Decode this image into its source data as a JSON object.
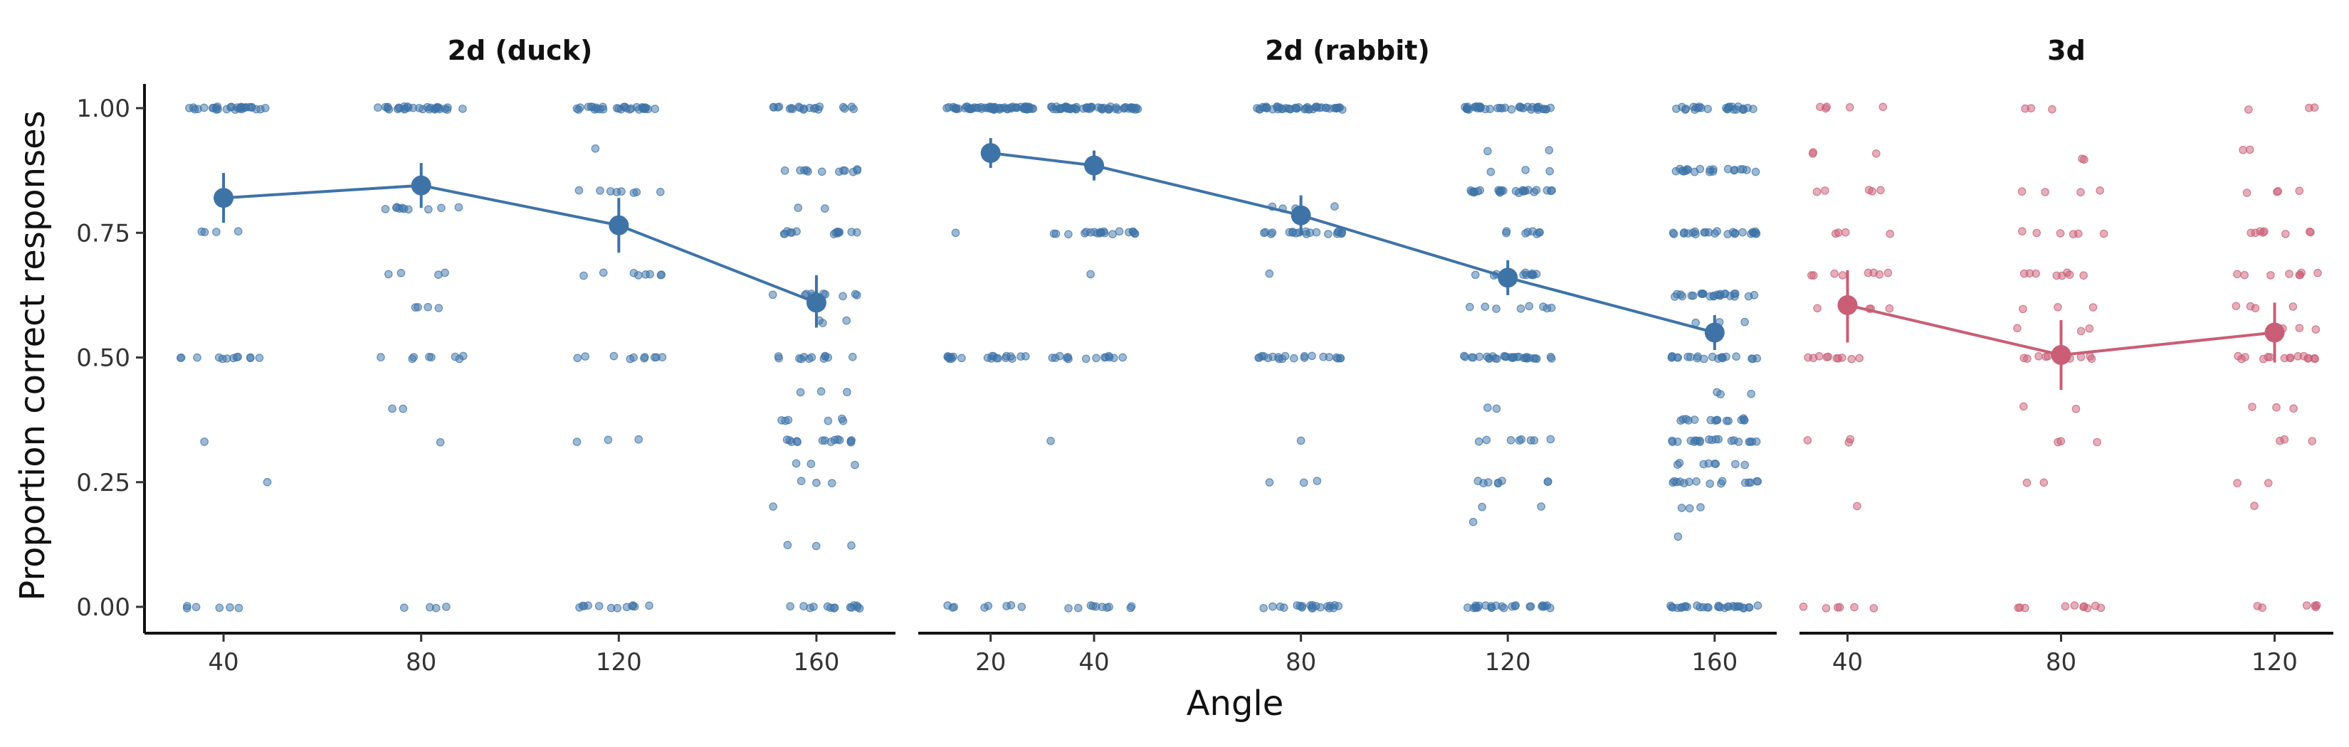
{
  "chart_data": {
    "type": "scatter",
    "xlabel": "Angle",
    "ylabel": "Proportion correct responses",
    "ylim": [
      0,
      1
    ],
    "y_ticks": [
      "0.00",
      "0.25",
      "0.50",
      "0.75",
      "1.00"
    ],
    "grid": false,
    "legend": "none",
    "panels": [
      {
        "title": "2d (duck)",
        "color": "#3e73a8",
        "x_ticks": [
          "40",
          "80",
          "120",
          "160"
        ],
        "xlim": [
          24,
          176
        ],
        "means": [
          {
            "x": 40,
            "y": 0.82,
            "lo": 0.77,
            "hi": 0.87
          },
          {
            "x": 80,
            "y": 0.845,
            "lo": 0.8,
            "hi": 0.89
          },
          {
            "x": 120,
            "y": 0.765,
            "lo": 0.71,
            "hi": 0.82
          },
          {
            "x": 160,
            "y": 0.61,
            "lo": 0.56,
            "hi": 0.665
          }
        ],
        "jitter_points": [
          {
            "x": 40,
            "levels": [
              [
                1.0,
                30
              ],
              [
                0.75,
                4
              ],
              [
                0.5,
                12
              ],
              [
                0.333,
                1
              ],
              [
                0.25,
                1
              ],
              [
                0.0,
                6
              ]
            ]
          },
          {
            "x": 80,
            "levels": [
              [
                1.0,
                30
              ],
              [
                0.8,
                10
              ],
              [
                0.667,
                4
              ],
              [
                0.6,
                4
              ],
              [
                0.5,
                8
              ],
              [
                0.4,
                2
              ],
              [
                0.333,
                1
              ],
              [
                0.0,
                4
              ]
            ]
          },
          {
            "x": 120,
            "levels": [
              [
                1.0,
                30
              ],
              [
                0.917,
                1
              ],
              [
                0.833,
                8
              ],
              [
                0.667,
                8
              ],
              [
                0.5,
                10
              ],
              [
                0.333,
                3
              ],
              [
                0.0,
                12
              ]
            ]
          },
          {
            "x": 160,
            "levels": [
              [
                1.0,
                20
              ],
              [
                0.875,
                12
              ],
              [
                0.8,
                2
              ],
              [
                0.75,
                14
              ],
              [
                0.625,
                10
              ],
              [
                0.571,
                3
              ],
              [
                0.5,
                12
              ],
              [
                0.429,
                3
              ],
              [
                0.375,
                6
              ],
              [
                0.333,
                14
              ],
              [
                0.286,
                3
              ],
              [
                0.25,
                3
              ],
              [
                0.2,
                1
              ],
              [
                0.125,
                3
              ],
              [
                0.0,
                14
              ]
            ]
          }
        ]
      },
      {
        "title": "2d (rabbit)",
        "color": "#3e73a8",
        "x_ticks": [
          "20",
          "40",
          "80",
          "120",
          "160"
        ],
        "xlim": [
          6,
          172
        ],
        "means": [
          {
            "x": 20,
            "y": 0.91,
            "lo": 0.88,
            "hi": 0.94
          },
          {
            "x": 40,
            "y": 0.885,
            "lo": 0.855,
            "hi": 0.915
          },
          {
            "x": 80,
            "y": 0.785,
            "lo": 0.745,
            "hi": 0.825
          },
          {
            "x": 120,
            "y": 0.66,
            "lo": 0.625,
            "hi": 0.695
          },
          {
            "x": 160,
            "y": 0.55,
            "lo": 0.515,
            "hi": 0.585
          }
        ],
        "jitter_points": [
          {
            "x": 20,
            "levels": [
              [
                1.0,
                60
              ],
              [
                0.75,
                1
              ],
              [
                0.5,
                20
              ],
              [
                0.0,
                8
              ]
            ]
          },
          {
            "x": 40,
            "levels": [
              [
                1.0,
                55
              ],
              [
                0.75,
                20
              ],
              [
                0.667,
                1
              ],
              [
                0.5,
                14
              ],
              [
                0.333,
                1
              ],
              [
                0.0,
                10
              ]
            ]
          },
          {
            "x": 80,
            "levels": [
              [
                1.0,
                45
              ],
              [
                0.8,
                4
              ],
              [
                0.75,
                20
              ],
              [
                0.667,
                1
              ],
              [
                0.5,
                20
              ],
              [
                0.333,
                1
              ],
              [
                0.25,
                3
              ],
              [
                0.0,
                20
              ]
            ]
          },
          {
            "x": 120,
            "levels": [
              [
                1.0,
                40
              ],
              [
                0.917,
                2
              ],
              [
                0.875,
                3
              ],
              [
                0.833,
                25
              ],
              [
                0.75,
                8
              ],
              [
                0.667,
                12
              ],
              [
                0.6,
                8
              ],
              [
                0.5,
                30
              ],
              [
                0.4,
                2
              ],
              [
                0.333,
                8
              ],
              [
                0.25,
                8
              ],
              [
                0.2,
                2
              ],
              [
                0.167,
                1
              ],
              [
                0.0,
                25
              ]
            ]
          },
          {
            "x": 160,
            "levels": [
              [
                1.0,
                25
              ],
              [
                0.875,
                20
              ],
              [
                0.75,
                25
              ],
              [
                0.625,
                25
              ],
              [
                0.571,
                3
              ],
              [
                0.5,
                20
              ],
              [
                0.429,
                3
              ],
              [
                0.375,
                15
              ],
              [
                0.333,
                20
              ],
              [
                0.286,
                8
              ],
              [
                0.25,
                15
              ],
              [
                0.2,
                3
              ],
              [
                0.143,
                1
              ],
              [
                0.0,
                30
              ]
            ]
          }
        ]
      },
      {
        "title": "3d",
        "color": "#c95e76",
        "x_ticks": [
          "40",
          "80",
          "120"
        ],
        "xlim": [
          31,
          131
        ],
        "means": [
          {
            "x": 40,
            "y": 0.605,
            "lo": 0.53,
            "hi": 0.675
          },
          {
            "x": 80,
            "y": 0.505,
            "lo": 0.435,
            "hi": 0.575
          },
          {
            "x": 120,
            "y": 0.55,
            "lo": 0.49,
            "hi": 0.61
          }
        ],
        "jitter_points": [
          {
            "x": 40,
            "levels": [
              [
                1.0,
                5
              ],
              [
                0.909,
                3
              ],
              [
                0.833,
                5
              ],
              [
                0.75,
                4
              ],
              [
                0.667,
                8
              ],
              [
                0.6,
                4
              ],
              [
                0.5,
                10
              ],
              [
                0.333,
                3
              ],
              [
                0.2,
                1
              ],
              [
                0.0,
                6
              ]
            ]
          },
          {
            "x": 80,
            "levels": [
              [
                1.0,
                3
              ],
              [
                0.9,
                2
              ],
              [
                0.833,
                4
              ],
              [
                0.75,
                6
              ],
              [
                0.667,
                8
              ],
              [
                0.6,
                3
              ],
              [
                0.556,
                3
              ],
              [
                0.5,
                10
              ],
              [
                0.4,
                2
              ],
              [
                0.333,
                3
              ],
              [
                0.25,
                2
              ],
              [
                0.0,
                10
              ]
            ]
          },
          {
            "x": 120,
            "levels": [
              [
                1.0,
                3
              ],
              [
                0.917,
                2
              ],
              [
                0.833,
                4
              ],
              [
                0.75,
                8
              ],
              [
                0.667,
                8
              ],
              [
                0.6,
                4
              ],
              [
                0.556,
                3
              ],
              [
                0.5,
                15
              ],
              [
                0.4,
                3
              ],
              [
                0.333,
                3
              ],
              [
                0.25,
                2
              ],
              [
                0.2,
                1
              ],
              [
                0.0,
                6
              ]
            ]
          }
        ]
      }
    ]
  }
}
